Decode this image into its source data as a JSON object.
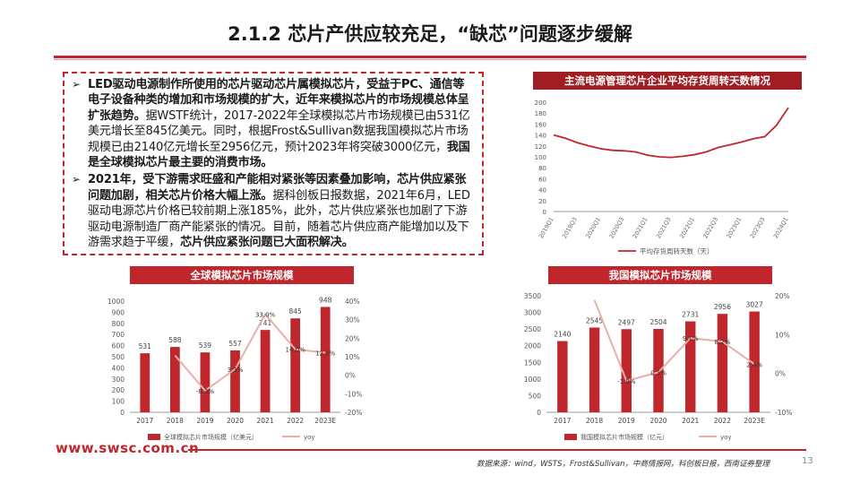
{
  "page": {
    "title": "2.1.2 芯片产供应较充足，“缺芯”问题逐步缓解",
    "url": "www.swsc.com.cn",
    "source": "数据来源：wind，WSTS，Frost&Sullivan，中商情报网，科创板日报，西南证券整理",
    "page_number": "13"
  },
  "text_box": {
    "p1": [
      {
        "t": "LED驱动电源制作所使用的芯片驱动芯片属模拟芯片，受益于PC、通信等电子设备种类的增加和市场规模的扩大，近年来模拟芯片的市场规模总体呈扩张趋势。",
        "b": true
      },
      {
        "t": "据WSTF统计，2017-2022年全球模拟芯片市场规模已由531亿美元增长至845亿美元。同时，根据Frost&Sullivan数据我国模拟芯片市场规模已由2140亿元增长至2956亿元，预计2023年将突破3000亿元，",
        "b": false
      },
      {
        "t": "我国是全球模拟芯片最主要的消费市场。",
        "b": true
      }
    ],
    "p2": [
      {
        "t": "2021年，受下游需求旺盛和产能相对紧张等因素叠加影响，芯片供应紧张问题加剧，相关芯片价格大幅上涨。",
        "b": true
      },
      {
        "t": "据科创板日报数据，2021年6月，LED驱动电源芯片价格已较前期上涨185%，此外，芯片供应紧张也加剧了下游驱动电源制造厂商产能紧张的情况。目前，随着芯片供应商产能增加以及下游需求趋于平缓，",
        "b": false
      },
      {
        "t": "芯片供应紧张问题已大面积解决。",
        "b": true
      }
    ]
  },
  "chart_titles": {
    "inventory": "主流电源管理芯片企业平均存货周转天数情况",
    "global": "全球模拟芯片市场规模",
    "china": "我国模拟芯片市场规模"
  },
  "chart_data": [
    {
      "id": "inventory",
      "type": "line",
      "title": "主流电源管理芯片企业平均存货周转天数情况",
      "x": [
        "2019Q1",
        "2019Q2",
        "2019Q3",
        "2019Q4",
        "2020Q1",
        "2020Q2",
        "2020Q3",
        "2020Q4",
        "2021Q1",
        "2021Q2",
        "2021Q3",
        "2021Q4",
        "2022Q1",
        "2022Q2",
        "2022Q3",
        "2022Q4",
        "2023Q1",
        "2023Q2",
        "2023Q3",
        "2023Q4",
        "2024Q1"
      ],
      "x_tick_labels": [
        "2019Q1",
        "2019Q3",
        "2020Q1",
        "2020Q3",
        "2021Q1",
        "2021Q3",
        "2022Q1",
        "2022Q3",
        "2023Q1",
        "2023Q3",
        "2024Q1"
      ],
      "series": [
        {
          "name": "平均存货周转天数（天）",
          "color": "#c0272d",
          "values": [
            140,
            134,
            126,
            120,
            115,
            112,
            111,
            109,
            103,
            100,
            99,
            101,
            104,
            109,
            117,
            122,
            127,
            133,
            137,
            158,
            190
          ]
        }
      ],
      "ylim": [
        0,
        200
      ],
      "yticks": [
        0,
        20,
        40,
        60,
        80,
        100,
        120,
        140,
        160,
        180,
        200
      ],
      "grid": false,
      "legend": "bottom"
    },
    {
      "id": "global",
      "type": "bar",
      "title": "全球模拟芯片市场规模",
      "categories": [
        "2017",
        "2018",
        "2019",
        "2020",
        "2021",
        "2022",
        "2023E"
      ],
      "series": [
        {
          "name": "全球模拟芯片市场规模（亿美元）",
          "axis": "left",
          "color": "#c0272d",
          "values": [
            531,
            588,
            539,
            557,
            741,
            845,
            948
          ],
          "labels": [
            "531",
            "588",
            "539",
            "557",
            "741",
            "845",
            "948"
          ]
        },
        {
          "name": "yoy",
          "axis": "right",
          "type": "line",
          "color": "#e8b0a8",
          "values": [
            null,
            10.7,
            -8.3,
            3.3,
            33.0,
            14.0,
            12.2
          ],
          "labels": [
            "",
            "",
            "-8.3%",
            "3.3%",
            "33.0%",
            "14.0%",
            "12.2%"
          ]
        }
      ],
      "ylim_left": [
        0,
        1000
      ],
      "yticks_left": [
        0,
        100,
        200,
        300,
        400,
        500,
        600,
        700,
        800,
        900,
        1000
      ],
      "ylim_right": [
        -20,
        40
      ],
      "yticks_right": [
        "-20%",
        "-10%",
        "0%",
        "10%",
        "20%",
        "30%",
        "40%"
      ],
      "legend": "bottom"
    },
    {
      "id": "china",
      "type": "bar",
      "title": "我国模拟芯片市场规模",
      "categories": [
        "2017",
        "2018",
        "2019",
        "2020",
        "2021",
        "2022",
        "2023E"
      ],
      "series": [
        {
          "name": "我国模拟芯片市场规模（亿元）",
          "axis": "left",
          "color": "#c0272d",
          "values": [
            2140,
            2545,
            2497,
            2504,
            2731,
            2956,
            3027
          ],
          "labels": [
            "2140",
            "2545",
            "2497",
            "2504",
            "2731",
            "2956",
            "3027"
          ]
        },
        {
          "name": "yoy",
          "axis": "right",
          "type": "line",
          "color": "#e8b0a8",
          "values": [
            null,
            18.9,
            -1.9,
            0.3,
            9.1,
            8.2,
            2.4
          ],
          "labels": [
            "",
            "",
            "-1.9%",
            "0.3%",
            "9.1%",
            "8.2%",
            "2.4%"
          ]
        }
      ],
      "ylim_left": [
        0,
        3500
      ],
      "yticks_left": [
        0,
        500,
        1000,
        1500,
        2000,
        2500,
        3000,
        3500
      ],
      "ylim_right": [
        -10,
        20
      ],
      "yticks_right": [
        "-10%",
        "0%",
        "10%",
        "20%"
      ],
      "legend": "bottom"
    }
  ]
}
